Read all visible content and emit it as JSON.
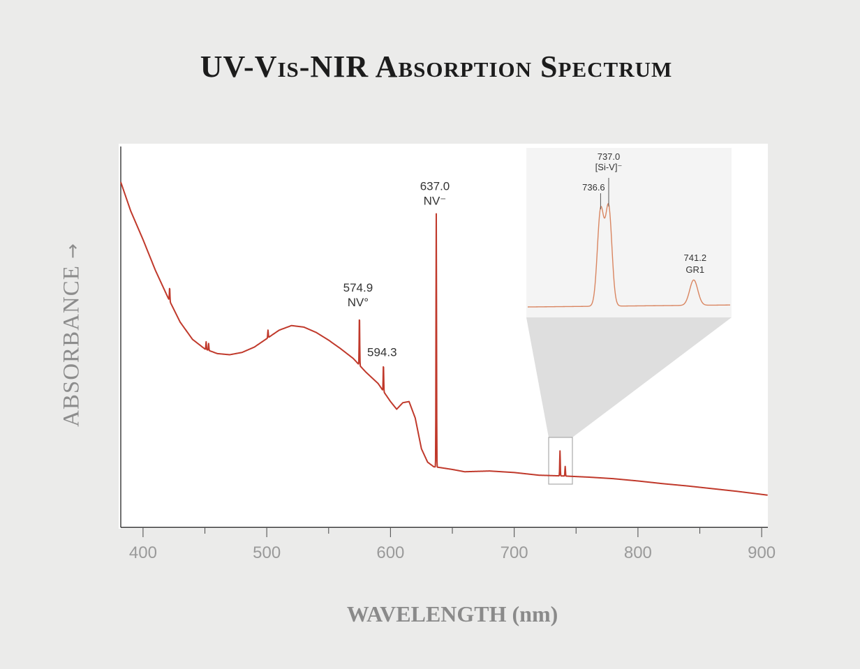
{
  "chart_data": {
    "type": "line",
    "title": "UV-Vis-NIR Absorption Spectrum",
    "xlabel": "WAVELENGTH (nm)",
    "ylabel": "ABSORBANCE",
    "ylabel_arrow": "→",
    "xlim": [
      382,
      905
    ],
    "ylim": [
      0,
      100
    ],
    "xticks": [
      400,
      500,
      600,
      700,
      800,
      900
    ],
    "grid": false,
    "line_color": "#c0392b",
    "series": [
      {
        "x": [
          382,
          390,
          400,
          410,
          420,
          430,
          440,
          450,
          460,
          470,
          480,
          490,
          500,
          510,
          520,
          530,
          540,
          550,
          560,
          570,
          580,
          590,
          600,
          605,
          610,
          615,
          620,
          625,
          630,
          635,
          640,
          650,
          660,
          680,
          700,
          720,
          740,
          760,
          780,
          800,
          820,
          840,
          860,
          880,
          905
        ],
        "y": [
          90,
          82.5,
          75,
          67,
          60,
          53.5,
          49,
          46.5,
          45.3,
          45,
          45.6,
          47,
          49.2,
          51.4,
          52.6,
          52.2,
          50.8,
          48.8,
          46.5,
          44,
          40.5,
          37.5,
          32.8,
          30.8,
          32.5,
          32.8,
          28.5,
          20.5,
          17,
          15.8,
          15.6,
          15.1,
          14.5,
          14.7,
          14.3,
          13.6,
          13.4,
          13.1,
          12.7,
          12.1,
          11.4,
          10.8,
          10.1,
          9.4,
          8.4
        ]
      }
    ],
    "peaks": [
      {
        "x": 421.5,
        "height": 3.5
      },
      {
        "x": 451,
        "height": 2.0
      },
      {
        "x": 453,
        "height": 1.8
      },
      {
        "x": 501,
        "height": 2.0
      },
      {
        "x": 574.9,
        "height": 13
      },
      {
        "x": 594.3,
        "height": 7
      },
      {
        "x": 637.0,
        "height": 66
      },
      {
        "x": 737.0,
        "height": 6.5
      },
      {
        "x": 741.2,
        "height": 2.5
      }
    ],
    "annotations": [
      {
        "label": "574.9",
        "sublabel": "NV°",
        "x": 574.9
      },
      {
        "label": "594.3",
        "sublabel": "",
        "x": 594.3
      },
      {
        "label": "637.0",
        "sublabel": "NV⁻",
        "x": 637.0
      }
    ],
    "inset": {
      "zoom_range": [
        733,
        743
      ],
      "annotations": [
        {
          "label": "737.0",
          "sublabel": "[Si-V]⁻"
        },
        {
          "label": "736.6",
          "sublabel": ""
        },
        {
          "label": "741.2",
          "sublabel": "GR1"
        }
      ]
    }
  }
}
